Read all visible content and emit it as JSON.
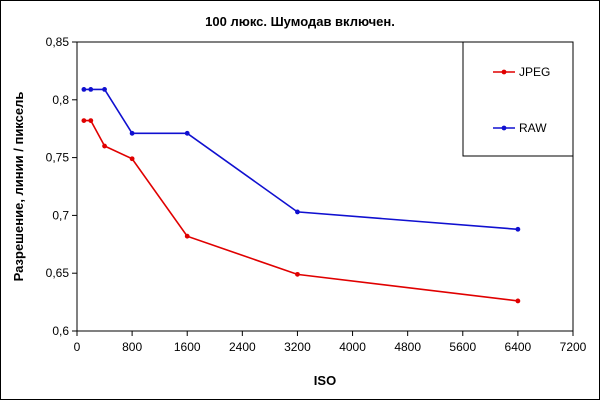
{
  "chart_data": {
    "type": "line",
    "title": "100 люкс. Шумодав включен.",
    "xlabel": "ISO",
    "ylabel": "Разрешение, линии / пиксель",
    "xlim": [
      0,
      7200
    ],
    "ylim": [
      0.6,
      0.85
    ],
    "x_ticks": [
      0,
      800,
      1600,
      2400,
      3200,
      4000,
      4800,
      5600,
      6400,
      7200
    ],
    "x_tick_labels": [
      "0",
      "800",
      "1600",
      "2400",
      "3200",
      "4000",
      "4800",
      "5600",
      "6400",
      "7200"
    ],
    "y_ticks": [
      0.6,
      0.65,
      0.7,
      0.75,
      0.8,
      0.85
    ],
    "y_tick_labels": [
      "0,6",
      "0,65",
      "0,7",
      "0,75",
      "0,8",
      "0,85"
    ],
    "grid": false,
    "legend_position": "top-right",
    "series": [
      {
        "name": "JPEG",
        "color": "#e00000",
        "x": [
          100,
          200,
          400,
          800,
          1600,
          3200,
          6400
        ],
        "y": [
          0.782,
          0.782,
          0.76,
          0.749,
          0.682,
          0.649,
          0.626
        ]
      },
      {
        "name": "RAW",
        "color": "#1010d0",
        "x": [
          100,
          200,
          400,
          800,
          1600,
          3200,
          6400
        ],
        "y": [
          0.809,
          0.809,
          0.809,
          0.771,
          0.771,
          0.703,
          0.688
        ]
      }
    ]
  }
}
